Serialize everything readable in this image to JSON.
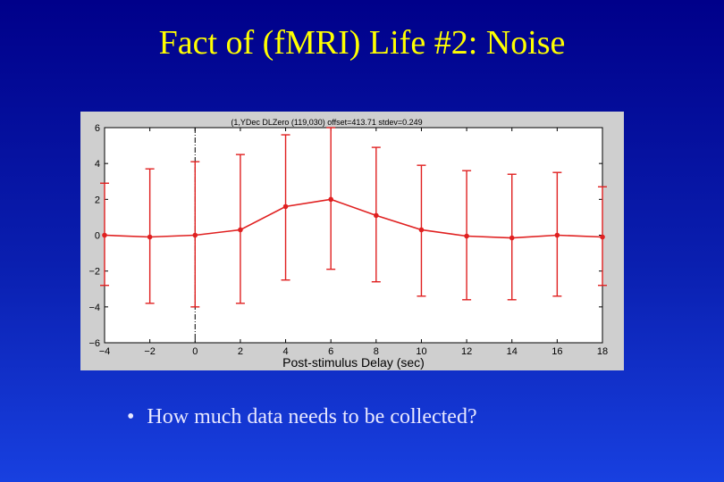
{
  "slide": {
    "title": "Fact of (fMRI) Life #2: Noise",
    "bullet_symbol": "•",
    "bullet_text": "How much data needs to be collected?"
  },
  "colors": {
    "background": "#0a1fb0",
    "title": "#ffff00",
    "series": "#e02020",
    "plot_bg": "#ffffff",
    "frame_bg": "#cfcfcf"
  },
  "chart_data": {
    "type": "line",
    "title": "(1,YDec DLZero (119,030) offset=413.71 stdev=0.249",
    "xlabel": "Post-stimulus Delay (sec)",
    "ylabel": "",
    "xlim": [
      -4,
      18
    ],
    "ylim": [
      -6,
      6
    ],
    "xticks": [
      -4,
      -2,
      0,
      2,
      4,
      6,
      8,
      10,
      12,
      14,
      16,
      18
    ],
    "xtick_labels": [
      "−4",
      "−2",
      "0",
      "2",
      "4",
      "6",
      "8",
      "10",
      "12",
      "14",
      "16",
      "18"
    ],
    "yticks": [
      6,
      4,
      2,
      0,
      -2,
      -4,
      -6
    ],
    "ytick_labels": [
      "6",
      "4",
      "2",
      "0",
      "−2",
      "−4",
      "−6"
    ],
    "grid": false,
    "legend": "none",
    "marker_line_x": 0,
    "series": [
      {
        "x": [
          -4,
          -2,
          0,
          2,
          4,
          6,
          8,
          10,
          12,
          14,
          16,
          18
        ],
        "y": [
          0.0,
          -0.1,
          0.0,
          0.3,
          1.6,
          2.0,
          1.1,
          0.3,
          -0.05,
          -0.15,
          0.0,
          -0.1
        ],
        "err_low": [
          -2.8,
          -3.8,
          -4.0,
          -3.8,
          -2.5,
          -1.9,
          -2.6,
          -3.4,
          -3.6,
          -3.6,
          -3.4,
          -2.8
        ],
        "err_high": [
          2.9,
          3.7,
          4.1,
          4.5,
          5.6,
          6.0,
          4.9,
          3.9,
          3.6,
          3.4,
          3.5,
          2.7
        ]
      }
    ]
  }
}
